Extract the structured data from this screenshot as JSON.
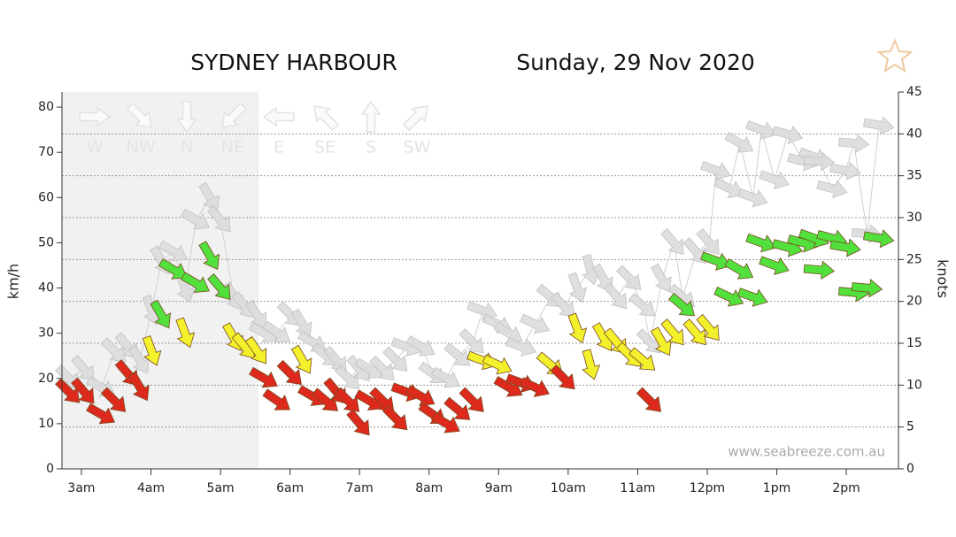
{
  "chart_data": {
    "type": "wind",
    "title": "SYDNEY HARBOUR",
    "subtitle": "Sunday, 29 Nov 2020",
    "watermark": "www.seabreeze.com.au",
    "ylabel": "km/h",
    "y2label": "knots",
    "compass": [
      "W",
      "NW",
      "N",
      "NE",
      "E",
      "SE",
      "S",
      "SW"
    ],
    "xlim": [
      2.72,
      14.75
    ],
    "xticks": [
      {
        "value": 3,
        "label": "3am"
      },
      {
        "value": 4,
        "label": "4am"
      },
      {
        "value": 5,
        "label": "5am"
      },
      {
        "value": 6,
        "label": "6am"
      },
      {
        "value": 7,
        "label": "7am"
      },
      {
        "value": 8,
        "label": "8am"
      },
      {
        "value": 9,
        "label": "9am"
      },
      {
        "value": 10,
        "label": "10am"
      },
      {
        "value": 11,
        "label": "11am"
      },
      {
        "value": 12,
        "label": "12pm"
      },
      {
        "value": 13,
        "label": "1pm"
      },
      {
        "value": 14,
        "label": "2pm"
      }
    ],
    "ylim": [
      0,
      83.34
    ],
    "yticks": [
      0,
      10,
      20,
      30,
      40,
      50,
      60,
      70,
      80
    ],
    "y2lim": [
      0,
      45
    ],
    "y2ticks": [
      0,
      5,
      10,
      15,
      20,
      25,
      30,
      35,
      40,
      45
    ],
    "grid": "y2",
    "night_end": 5.55,
    "x": [
      2.82,
      3.04,
      3.29,
      3.48,
      3.67,
      3.84,
      4.01,
      4.15,
      4.33,
      4.49,
      4.65,
      4.85,
      5.0,
      5.19,
      5.35,
      5.53,
      5.63,
      5.82,
      6.01,
      6.18,
      6.33,
      6.52,
      6.67,
      6.84,
      7.0,
      7.15,
      7.34,
      7.53,
      7.68,
      7.89,
      8.06,
      8.25,
      8.42,
      8.63,
      8.77,
      8.99,
      9.15,
      9.33,
      9.53,
      9.75,
      9.94,
      10.13,
      10.32,
      10.51,
      10.7,
      10.89,
      11.08,
      11.18,
      11.35,
      11.52,
      11.65,
      11.84,
      12.03,
      12.13,
      12.32,
      12.47,
      12.66,
      12.78,
      12.97,
      13.16,
      13.38,
      13.54,
      13.61,
      13.8,
      13.99,
      14.11,
      14.3,
      14.47
    ],
    "gust": {
      "color": "#dcdcdc",
      "values": [
        20,
        22,
        18,
        26,
        27,
        24,
        35,
        46,
        48,
        40,
        55,
        60,
        55,
        38,
        36,
        34,
        30,
        30,
        34,
        32,
        28,
        25,
        24,
        20,
        22,
        22,
        22,
        24,
        27,
        27,
        21,
        20,
        25,
        28,
        35,
        32,
        30,
        27,
        32,
        38,
        36,
        40,
        44,
        42,
        38,
        42,
        36,
        28,
        42,
        50,
        38,
        48,
        50,
        66,
        62,
        72,
        60,
        75,
        64,
        74,
        68,
        69,
        68,
        62,
        66,
        72,
        52,
        76
      ],
      "directions": [
        315,
        320,
        300,
        315,
        320,
        330,
        340,
        330,
        300,
        340,
        300,
        330,
        320,
        330,
        320,
        325,
        300,
        305,
        315,
        330,
        300,
        310,
        320,
        315,
        320,
        300,
        315,
        315,
        290,
        300,
        305,
        300,
        310,
        315,
        290,
        295,
        300,
        290,
        295,
        310,
        315,
        340,
        345,
        330,
        320,
        315,
        310,
        315,
        330,
        320,
        310,
        320,
        320,
        290,
        295,
        300,
        290,
        290,
        290,
        285,
        285,
        290,
        275,
        285,
        280,
        275,
        275,
        280
      ]
    },
    "wind": {
      "thresholds": [
        22,
        33.5
      ],
      "colors": [
        "#dd2a1c",
        "#f3f02c",
        "#52e03c"
      ],
      "values": [
        17,
        17,
        12,
        15,
        21,
        18,
        26,
        34,
        44,
        30,
        41,
        47,
        40,
        29,
        27,
        26,
        20,
        15,
        21,
        24,
        16,
        15,
        17,
        15,
        10,
        15,
        15,
        11,
        17,
        16,
        12,
        10,
        13,
        15,
        24,
        23,
        18,
        19,
        18,
        23,
        20,
        31,
        23,
        29,
        28,
        25,
        24,
        15,
        28,
        30,
        36,
        30,
        31,
        46,
        38,
        44,
        38,
        50,
        45,
        49,
        50,
        51,
        44,
        51,
        49,
        39,
        40,
        51
      ],
      "directions": [
        315,
        320,
        300,
        315,
        320,
        330,
        340,
        330,
        300,
        340,
        300,
        330,
        320,
        330,
        320,
        325,
        300,
        305,
        315,
        330,
        300,
        310,
        320,
        315,
        320,
        300,
        315,
        315,
        290,
        300,
        305,
        300,
        310,
        315,
        290,
        295,
        300,
        290,
        295,
        310,
        315,
        340,
        345,
        330,
        320,
        315,
        310,
        315,
        330,
        320,
        310,
        320,
        320,
        290,
        295,
        300,
        290,
        290,
        290,
        285,
        285,
        290,
        275,
        285,
        280,
        275,
        275,
        280
      ]
    }
  }
}
